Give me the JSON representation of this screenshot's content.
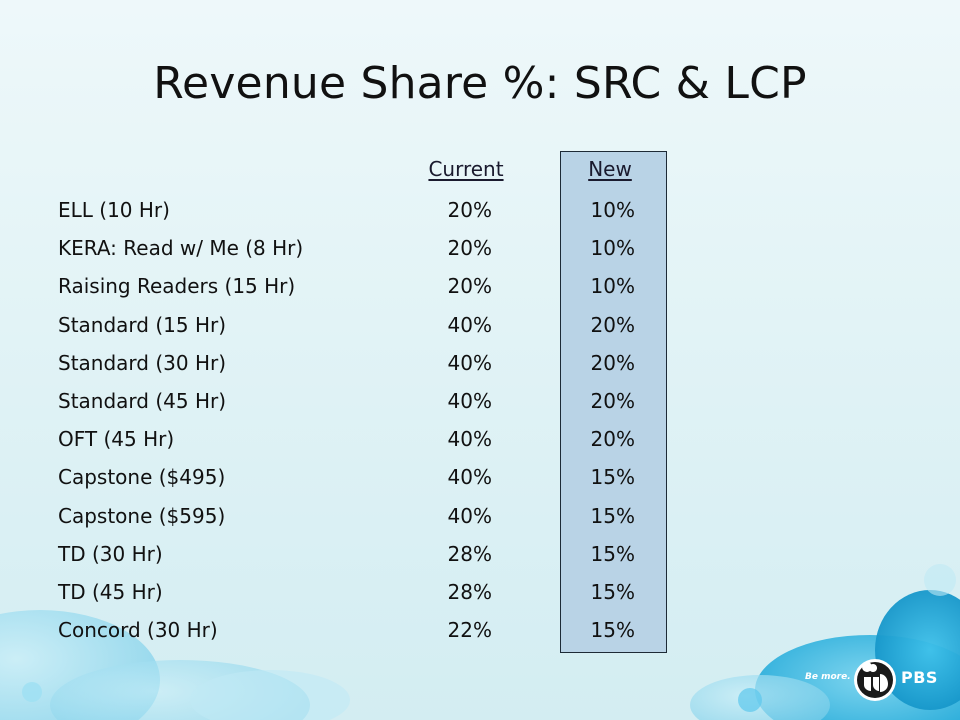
{
  "slide": {
    "title": "Revenue Share %: SRC & LCP",
    "headers": {
      "current": "Current",
      "new": "New"
    },
    "rows": [
      {
        "label": "ELL (10 Hr)",
        "current": "20%",
        "new": "10%"
      },
      {
        "label": "KERA: Read w/ Me (8 Hr)",
        "current": "20%",
        "new": "10%"
      },
      {
        "label": "Raising Readers (15 Hr)",
        "current": "20%",
        "new": "10%"
      },
      {
        "label": "Standard (15 Hr)",
        "current": "40%",
        "new": "20%"
      },
      {
        "label": "Standard (30 Hr)",
        "current": "40%",
        "new": "20%"
      },
      {
        "label": "Standard (45 Hr)",
        "current": "40%",
        "new": "20%"
      },
      {
        "label": "OFT (45 Hr)",
        "current": "40%",
        "new": "20%"
      },
      {
        "label": "Capstone ($495)",
        "current": "40%",
        "new": "15%"
      },
      {
        "label": "Capstone ($595)",
        "current": "40%",
        "new": "15%"
      },
      {
        "label": "TD (30 Hr)",
        "current": "28%",
        "new": "15%"
      },
      {
        "label": "TD (45 Hr)",
        "current": "28%",
        "new": "15%"
      },
      {
        "label": "Concord (30 Hr)",
        "current": "22%",
        "new": "15%"
      }
    ]
  },
  "logo": {
    "tagline": "Be more.",
    "wordmark": "PBS",
    "icon": "pbs-head-icon"
  },
  "colors": {
    "new_column_fill": "#b9d3e6",
    "background": "#dff2f5",
    "bubble": "#29b6e3"
  }
}
